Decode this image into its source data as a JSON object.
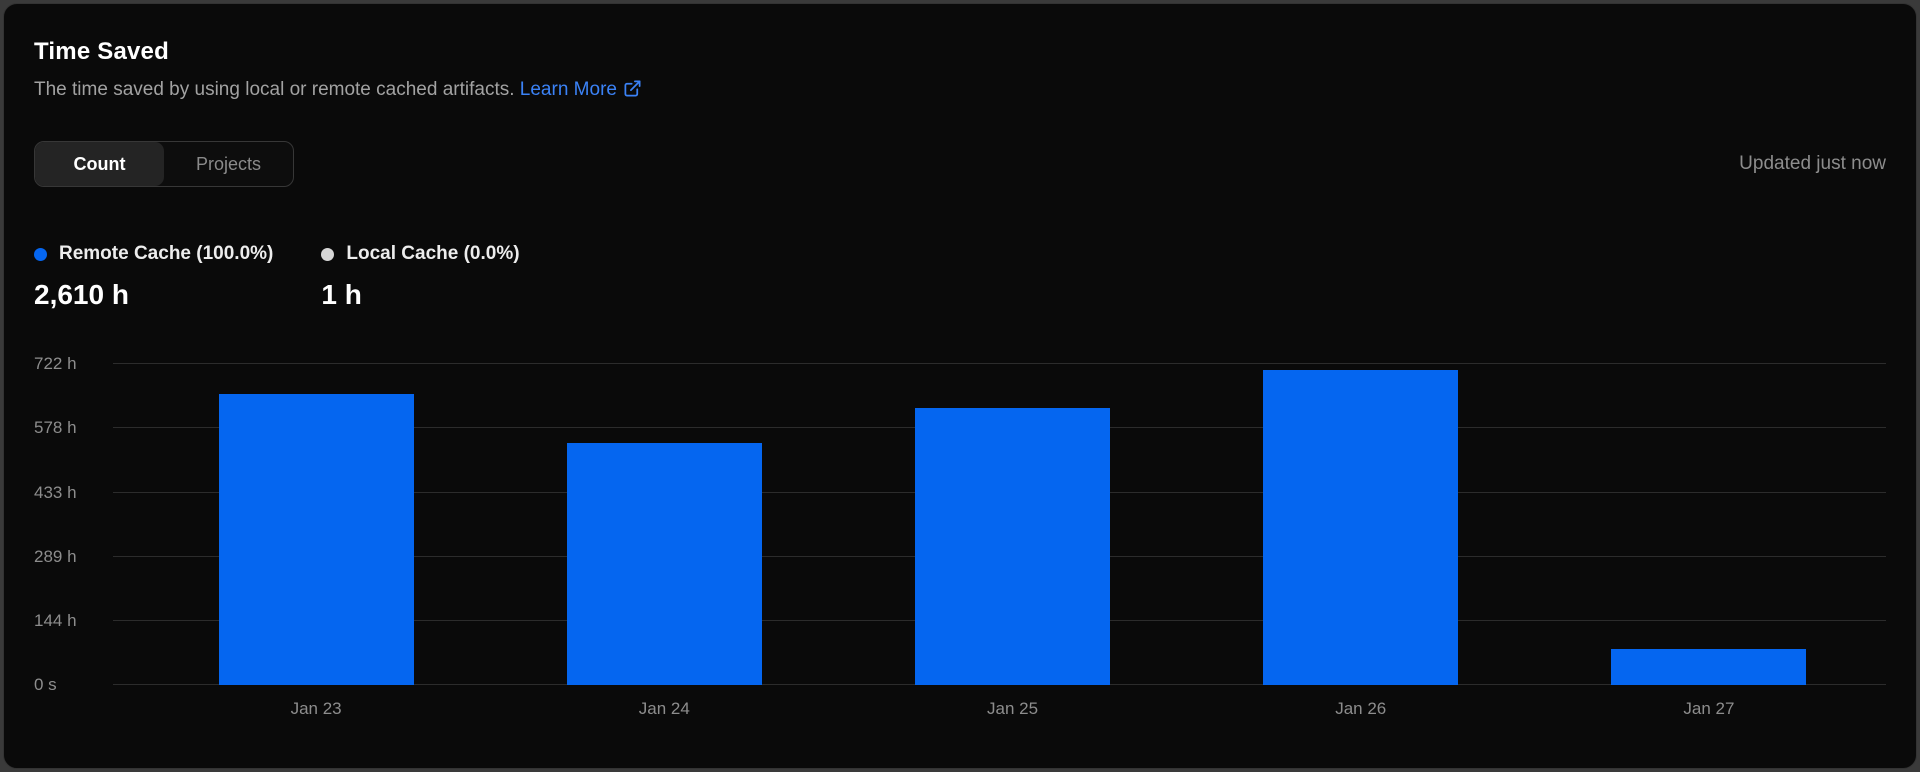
{
  "colors": {
    "bar": "#0566f0",
    "link": "#3b82f6",
    "card_background": "#0a0a0a",
    "gridline": "#2c2c2c"
  },
  "header": {
    "title": "Time Saved",
    "subtitle": "The time saved by using local or remote cached artifacts.",
    "learn_more_label": "Learn More"
  },
  "controls": {
    "tabs": [
      {
        "label": "Count",
        "active": true
      },
      {
        "label": "Projects",
        "active": false
      }
    ],
    "updated_text": "Updated just now"
  },
  "legend": {
    "items": [
      {
        "label": "Remote Cache (100.0%)",
        "value": "2,610 h",
        "color": "#0566f0"
      },
      {
        "label": "Local Cache (0.0%)",
        "value": "1 h",
        "color": "#d6d6d6"
      }
    ]
  },
  "chart_data": {
    "type": "bar",
    "title": "Time Saved",
    "series_name": "Remote Cache",
    "categories": [
      "Jan 23",
      "Jan 24",
      "Jan 25",
      "Jan 26",
      "Jan 27"
    ],
    "values": [
      655,
      544,
      622,
      708,
      81
    ],
    "unit": "hours",
    "total_label": "2,610 h",
    "xlabel": "",
    "ylabel": "",
    "ylim": [
      0,
      722
    ],
    "yticks": [
      {
        "value": 0,
        "label": "0 s"
      },
      {
        "value": 144,
        "label": "144 h"
      },
      {
        "value": 289,
        "label": "289 h"
      },
      {
        "value": 433,
        "label": "433 h"
      },
      {
        "value": 578,
        "label": "578 h"
      },
      {
        "value": 722,
        "label": "722 h"
      }
    ],
    "grid": "horizontal",
    "legend_position": "top-left",
    "bar_color": "#0566f0"
  }
}
